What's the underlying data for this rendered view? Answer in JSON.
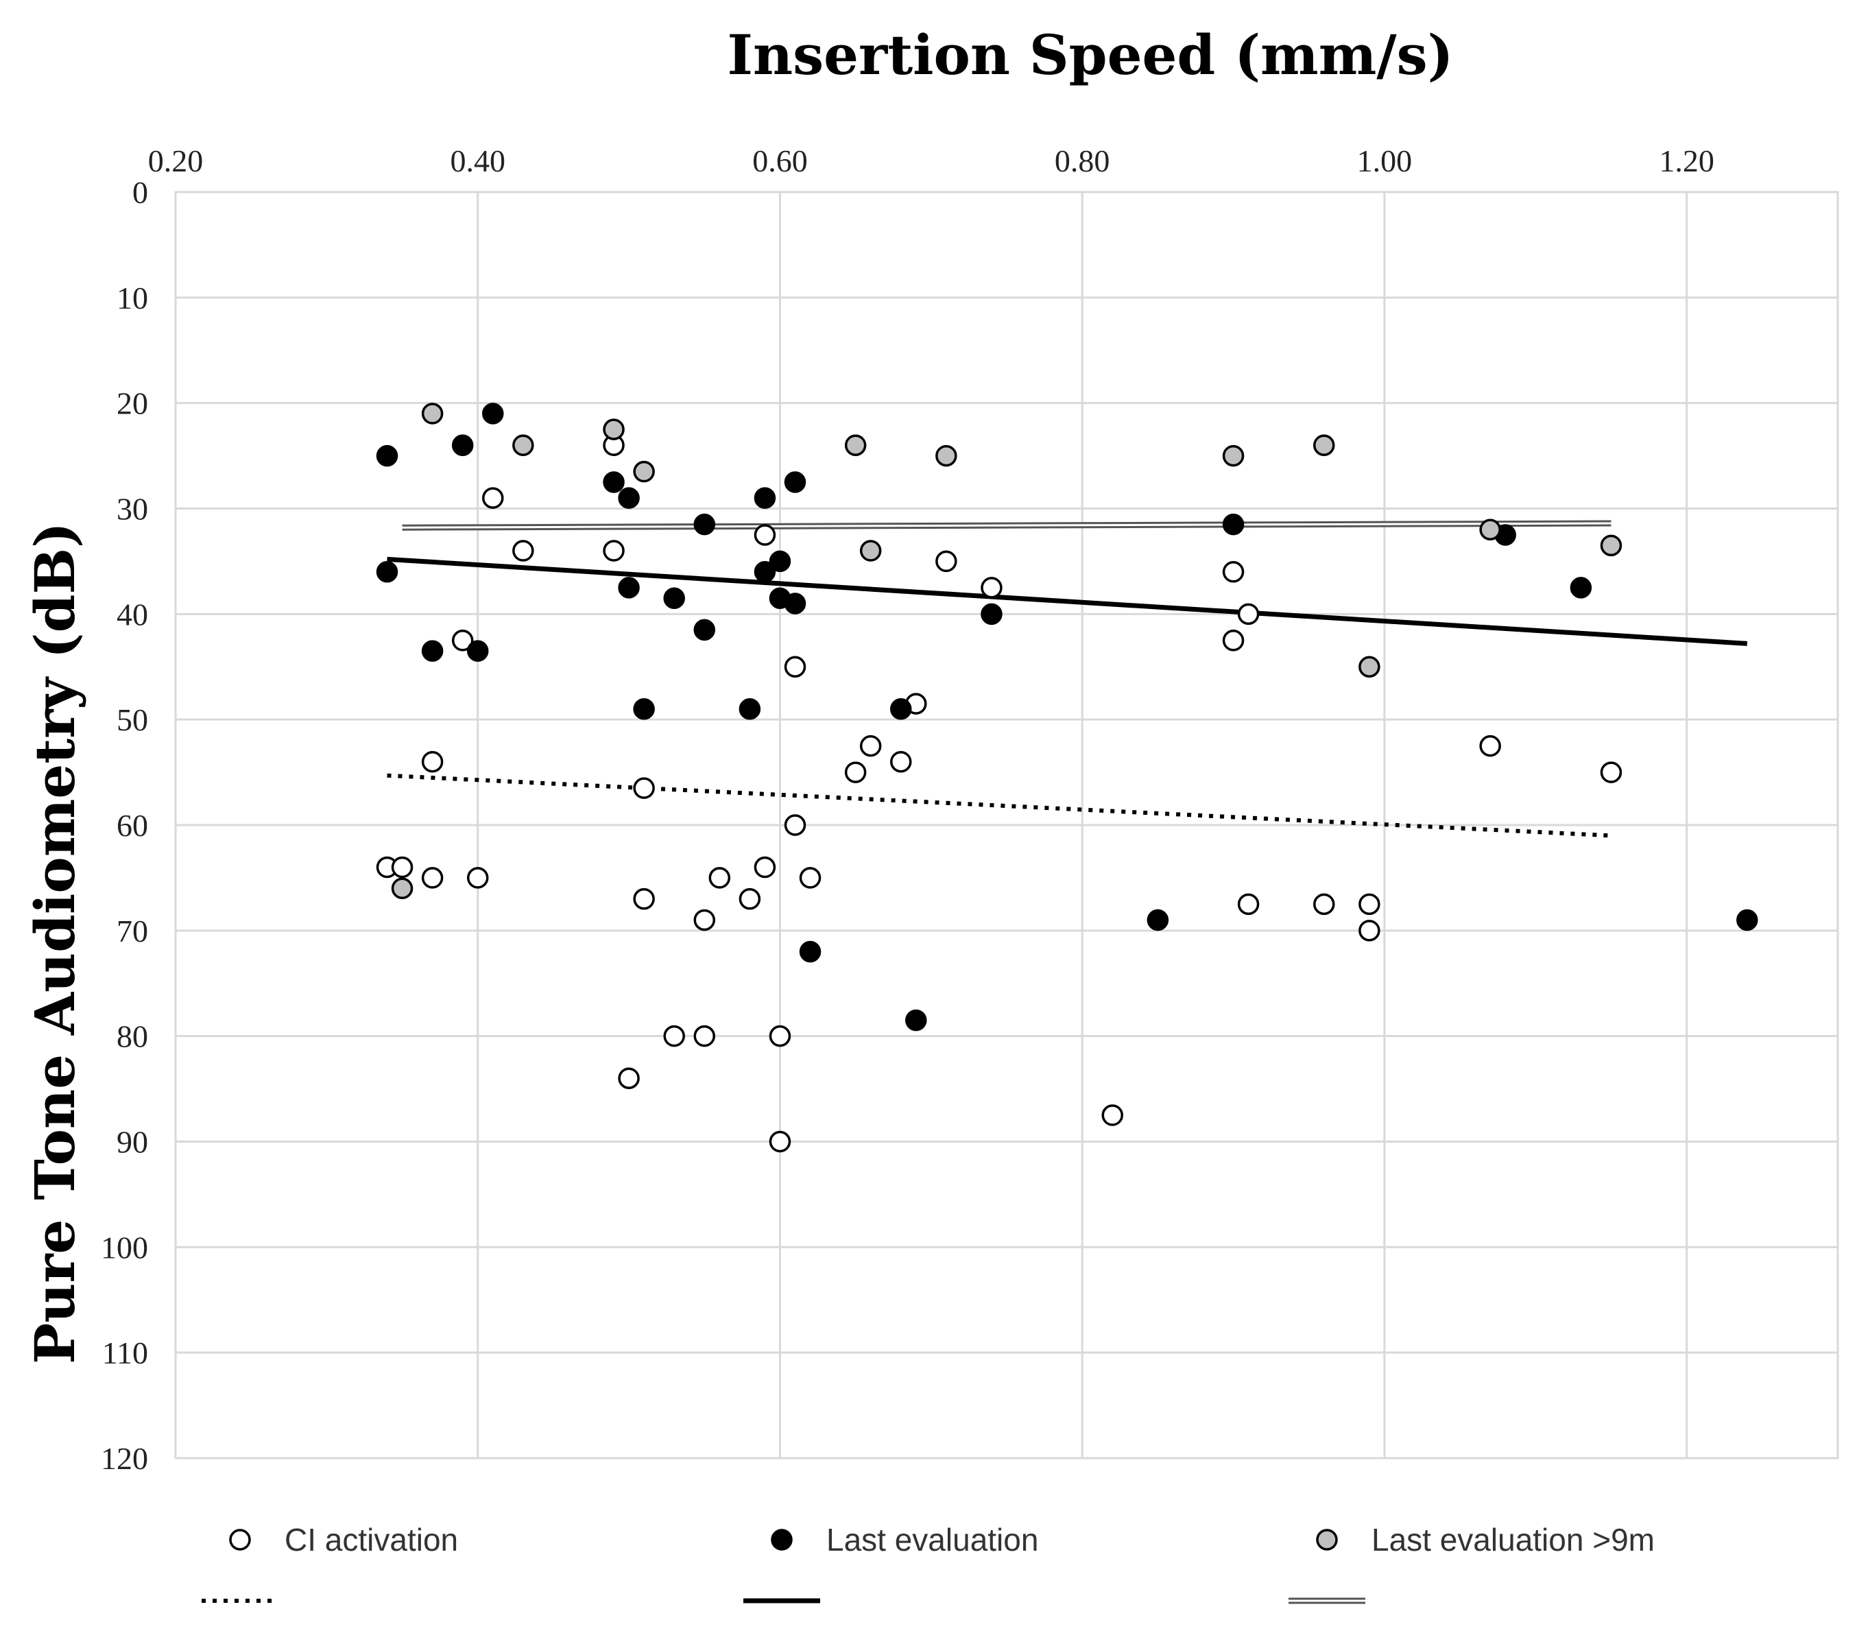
{
  "chart_data": {
    "type": "scatter",
    "title": "Insertion Speed (mm/s)",
    "xlabel": "Insertion Speed (mm/s)",
    "ylabel": "Pure Tone Audiometry (dB)",
    "xlim": [
      0.2,
      1.3
    ],
    "ylim": [
      0,
      120
    ],
    "y_inverted": true,
    "x_axis_position": "top",
    "grid": true,
    "x_ticks": [
      "0.20",
      "0.40",
      "0.60",
      "0.80",
      "1.00",
      "1.20"
    ],
    "y_ticks": [
      "0",
      "10",
      "20",
      "30",
      "40",
      "50",
      "60",
      "70",
      "80",
      "90",
      "100",
      "110",
      "120"
    ],
    "legend_position": "bottom",
    "series": [
      {
        "name": "CI activation",
        "marker": "open-circle",
        "color": "#ffffff",
        "points": [
          [
            0.34,
            64
          ],
          [
            0.35,
            64
          ],
          [
            0.37,
            54
          ],
          [
            0.37,
            65
          ],
          [
            0.39,
            42.5
          ],
          [
            0.4,
            65
          ],
          [
            0.41,
            29
          ],
          [
            0.43,
            34
          ],
          [
            0.49,
            24
          ],
          [
            0.49,
            34
          ],
          [
            0.5,
            84
          ],
          [
            0.51,
            56.5
          ],
          [
            0.51,
            67
          ],
          [
            0.53,
            80
          ],
          [
            0.55,
            80
          ],
          [
            0.55,
            69
          ],
          [
            0.56,
            65
          ],
          [
            0.58,
            67
          ],
          [
            0.59,
            32.5
          ],
          [
            0.59,
            64
          ],
          [
            0.6,
            80
          ],
          [
            0.6,
            90
          ],
          [
            0.61,
            45
          ],
          [
            0.61,
            60
          ],
          [
            0.62,
            65
          ],
          [
            0.65,
            55
          ],
          [
            0.66,
            52.5
          ],
          [
            0.68,
            54
          ],
          [
            0.69,
            48.5
          ],
          [
            0.71,
            35
          ],
          [
            0.74,
            37.5
          ],
          [
            0.82,
            87.5
          ],
          [
            0.9,
            36
          ],
          [
            0.9,
            42.5
          ],
          [
            0.91,
            40
          ],
          [
            0.91,
            67.5
          ],
          [
            0.96,
            67.5
          ],
          [
            0.99,
            67.5
          ],
          [
            0.99,
            70
          ],
          [
            1.07,
            52.5
          ],
          [
            1.15,
            55
          ]
        ]
      },
      {
        "name": "Last evaluation",
        "marker": "filled-circle",
        "color": "#000000",
        "points": [
          [
            0.34,
            25
          ],
          [
            0.34,
            36
          ],
          [
            0.37,
            43.5
          ],
          [
            0.39,
            24
          ],
          [
            0.4,
            43.5
          ],
          [
            0.41,
            21
          ],
          [
            0.49,
            27.5
          ],
          [
            0.5,
            29
          ],
          [
            0.5,
            37.5
          ],
          [
            0.51,
            49
          ],
          [
            0.53,
            38.5
          ],
          [
            0.55,
            31.5
          ],
          [
            0.55,
            41.5
          ],
          [
            0.58,
            49
          ],
          [
            0.59,
            29
          ],
          [
            0.59,
            36
          ],
          [
            0.6,
            35
          ],
          [
            0.6,
            38.5
          ],
          [
            0.61,
            27.5
          ],
          [
            0.61,
            39
          ],
          [
            0.62,
            72
          ],
          [
            0.68,
            49
          ],
          [
            0.69,
            78.5
          ],
          [
            0.74,
            40
          ],
          [
            0.85,
            69
          ],
          [
            0.9,
            31.5
          ],
          [
            1.08,
            32.5
          ],
          [
            1.13,
            37.5
          ],
          [
            1.24,
            69
          ]
        ]
      },
      {
        "name": "Last evaluation >9m",
        "marker": "gray-circle",
        "color": "#c0c0c0",
        "points": [
          [
            0.35,
            66
          ],
          [
            0.37,
            21
          ],
          [
            0.43,
            24
          ],
          [
            0.49,
            22.5
          ],
          [
            0.51,
            26.5
          ],
          [
            0.65,
            24
          ],
          [
            0.66,
            34
          ],
          [
            0.71,
            25
          ],
          [
            0.9,
            25
          ],
          [
            0.96,
            24
          ],
          [
            0.99,
            45
          ],
          [
            1.07,
            32
          ],
          [
            1.15,
            33.5
          ]
        ]
      }
    ],
    "trendlines": [
      {
        "series": "CI activation",
        "style": "dotted",
        "from": [
          0.34,
          55.3
        ],
        "to": [
          1.15,
          61
        ]
      },
      {
        "series": "Last evaluation",
        "style": "solid",
        "from": [
          0.34,
          34.8
        ],
        "to": [
          1.24,
          42.8
        ]
      },
      {
        "series": "Last evaluation >9m",
        "style": "double",
        "from": [
          0.35,
          31.8
        ],
        "to": [
          1.15,
          31.4
        ]
      }
    ]
  }
}
